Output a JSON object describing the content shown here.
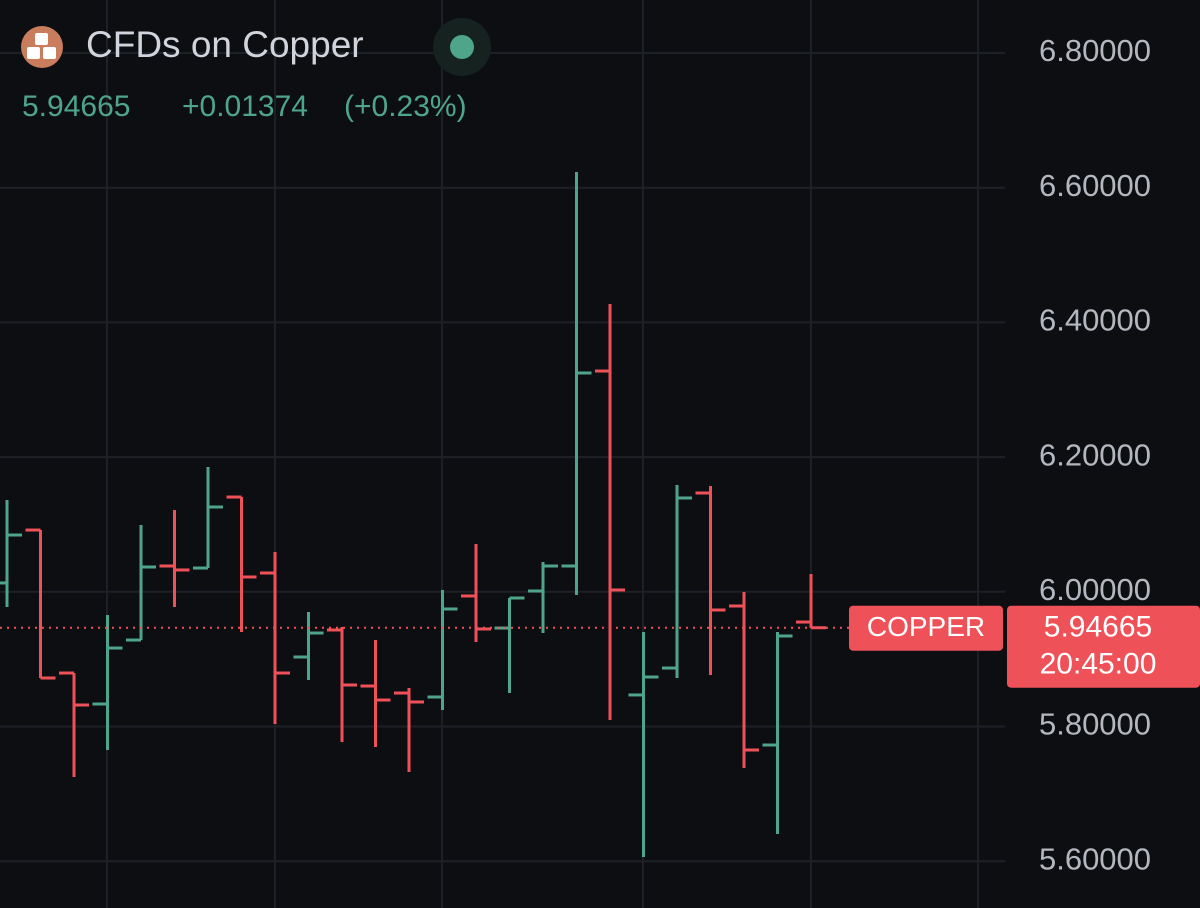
{
  "chart_data": {
    "type": "ohlc",
    "title": "CFDs on Copper",
    "header": {
      "price": 5.94665,
      "change": "+0.01374",
      "change_percent": "(+0.23%)"
    },
    "price_label": {
      "symbol": "COPPER",
      "price": 5.94665,
      "time": "20:45:00"
    },
    "up_color": "#4fa58a",
    "down_color": "#ef5159",
    "open": [
      6.0131,
      6.0917,
      5.8794,
      5.8334,
      5.9284,
      6.0383,
      6.0353,
      6.1407,
      6.0279,
      5.9032,
      5.9433,
      5.8601,
      5.8497,
      5.8438,
      5.9938,
      5.9462,
      6.0012,
      6.0383,
      6.3278,
      5.8468,
      5.8868,
      6.1467,
      5.9789,
      5.7725,
      5.9551
    ],
    "high": [
      6.1363,
      6.0917,
      5.8794,
      5.9655,
      6.0992,
      6.1214,
      6.1853,
      6.1407,
      6.0591,
      5.97,
      5.9477,
      5.9284,
      5.8572,
      6.0027,
      6.071,
      5.9908,
      6.0442,
      6.6233,
      6.4273,
      5.9403,
      6.1586,
      6.1571,
      5.9997,
      5.9403,
      6.0264
    ],
    "low": [
      5.9774,
      5.872,
      5.725,
      5.7651,
      5.9284,
      5.9774,
      6.0353,
      5.9403,
      5.8037,
      5.869,
      5.777,
      5.7696,
      5.7324,
      5.8245,
      5.9255,
      5.8497,
      5.9388,
      5.9952,
      5.8096,
      5.6062,
      5.872,
      5.8765,
      5.7384,
      5.6404,
      5.9462
    ],
    "close": [
      6.0843,
      5.872,
      5.8319,
      5.9165,
      6.0368,
      6.0324,
      6.1259,
      6.022,
      5.8794,
      5.9388,
      5.8616,
      5.8393,
      5.8364,
      5.9745,
      5.9448,
      5.9908,
      6.0383,
      6.3249,
      6.0027,
      5.8735,
      6.1393,
      5.973,
      5.7651,
      5.9344,
      5.94665
    ],
    "ylim": [
      5.5305,
      6.8787
    ],
    "yticks": [
      {
        "value": 5.6,
        "label": "5.60000"
      },
      {
        "value": 5.8,
        "label": "5.80000"
      },
      {
        "value": 6.0,
        "label": "6.00000"
      },
      {
        "value": 6.2,
        "label": "6.20000"
      },
      {
        "value": 6.4,
        "label": "6.40000"
      },
      {
        "value": 6.6,
        "label": "6.60000"
      },
      {
        "value": 6.8,
        "label": "6.80000"
      }
    ],
    "grid": true
  }
}
